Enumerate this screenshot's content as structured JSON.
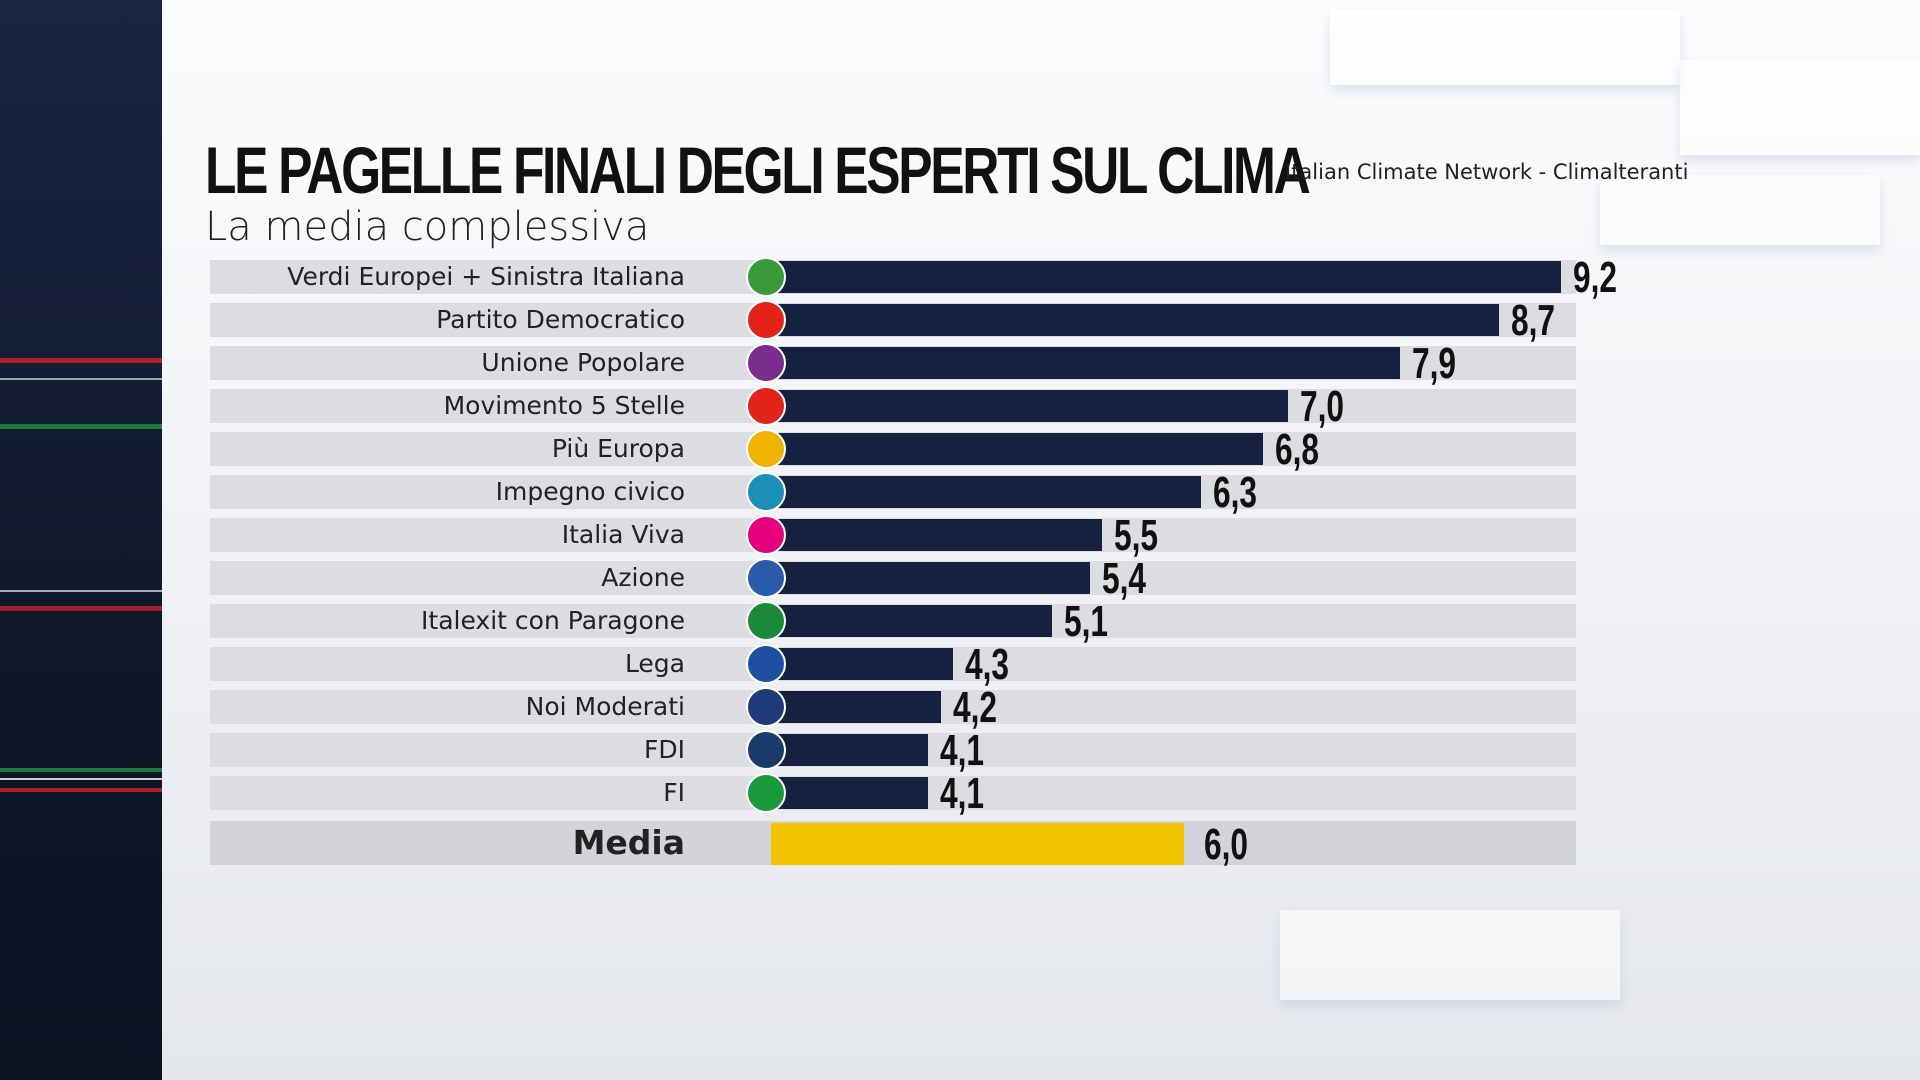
{
  "header": {
    "title": "LE PAGELLE FINALI DEGLI ESPERTI SUL CLIMA",
    "subtitle": "La media complessiva",
    "source": "Italian Climate Network - Climalteranti"
  },
  "chart_data": {
    "type": "bar",
    "orientation": "horizontal",
    "categories": [
      "Verdi Europei + Sinistra Italiana",
      "Partito Democratico",
      "Unione Popolare",
      "Movimento 5 Stelle",
      "Più Europa",
      "Impegno civico",
      "Italia Viva",
      "Azione",
      "Italexit con Paragone",
      "Lega",
      "Noi Moderati",
      "FDI",
      "FI"
    ],
    "values": [
      9.2,
      8.7,
      7.9,
      7.0,
      6.8,
      6.3,
      5.5,
      5.4,
      5.1,
      4.3,
      4.2,
      4.1,
      4.1
    ],
    "value_labels": [
      "9,2",
      "8,7",
      "7,9",
      "7,0",
      "6,8",
      "6,3",
      "5,5",
      "5,4",
      "5,1",
      "4,3",
      "4,2",
      "4,1",
      "4,1"
    ],
    "average": {
      "label": "Media",
      "value": 6.0,
      "value_label": "6,0"
    },
    "bar_color": "#16213f",
    "average_color": "#f2c500",
    "grid": false,
    "logo_colors": [
      "#3a9a3a",
      "#e2231a",
      "#7a2c8f",
      "#e2231a",
      "#f0b400",
      "#1b8fb5",
      "#e5007e",
      "#2a5ba8",
      "#1a8a3a",
      "#1e4fa0",
      "#1e3a7a",
      "#1a3a6a",
      "#1a9a3a"
    ]
  }
}
